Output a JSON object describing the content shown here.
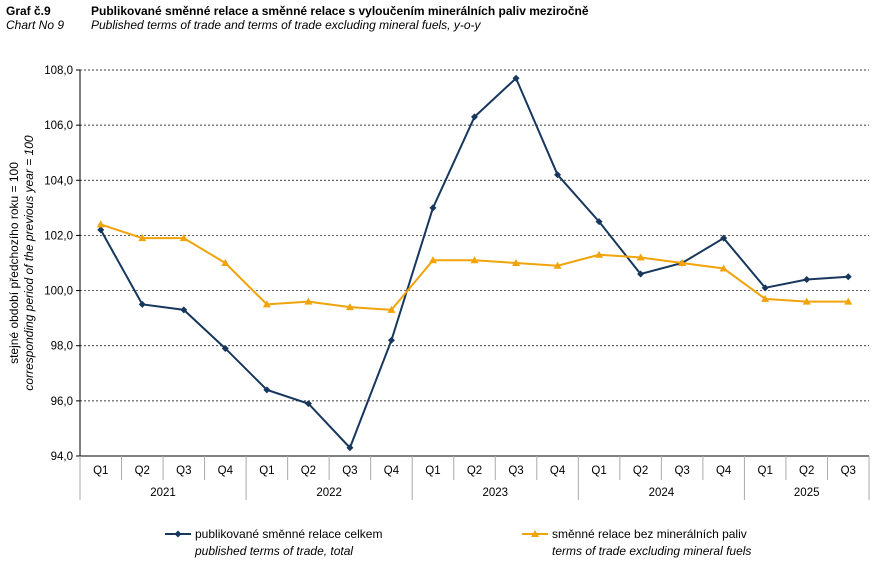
{
  "header": {
    "label_cz": "Graf č.9",
    "label_en": "Chart No 9",
    "title_cz": "Publikované směnné relace a směnné relace s vyloučením minerálních paliv meziročně",
    "title_en": "Published terms of trade and terms of trade excluding mineral fuels, y-o-y"
  },
  "chart_data": {
    "type": "line",
    "ylabel_cz": "stejné období předchozího roku = 100",
    "ylabel_en": "corresponding period of  the previous year = 100",
    "ylim": [
      94,
      108
    ],
    "yticks": [
      "94,0",
      "96,0",
      "98,0",
      "100,0",
      "102,0",
      "104,0",
      "106,0",
      "108,0"
    ],
    "grid": true,
    "legend_position": "bottom",
    "quarters": [
      "Q1",
      "Q2",
      "Q3",
      "Q4",
      "Q1",
      "Q2",
      "Q3",
      "Q4",
      "Q1",
      "Q2",
      "Q3",
      "Q4",
      "Q1",
      "Q2",
      "Q3",
      "Q4",
      "Q1",
      "Q2",
      "Q3"
    ],
    "years": [
      "2021",
      "2022",
      "2023",
      "2024",
      "2025"
    ],
    "series": [
      {
        "name_cz": "publikované směnné relace celkem",
        "name_en": "published terms of trade, total",
        "color": "#17375e",
        "marker": "diamond",
        "values": [
          102.2,
          99.5,
          99.3,
          97.9,
          96.4,
          95.9,
          94.3,
          98.2,
          103.0,
          106.3,
          107.7,
          104.2,
          102.5,
          100.6,
          101.0,
          101.9,
          100.1,
          100.4,
          100.5
        ]
      },
      {
        "name_cz": "směnné relace bez minerálních paliv",
        "name_en": "terms of trade excluding mineral fuels",
        "color": "#f0a30a",
        "marker": "triangle",
        "values": [
          102.4,
          101.9,
          101.9,
          101.0,
          99.5,
          99.6,
          99.4,
          99.3,
          101.1,
          101.1,
          101.0,
          100.9,
          101.3,
          101.2,
          101.0,
          100.8,
          99.7,
          99.6,
          99.6
        ]
      }
    ]
  }
}
